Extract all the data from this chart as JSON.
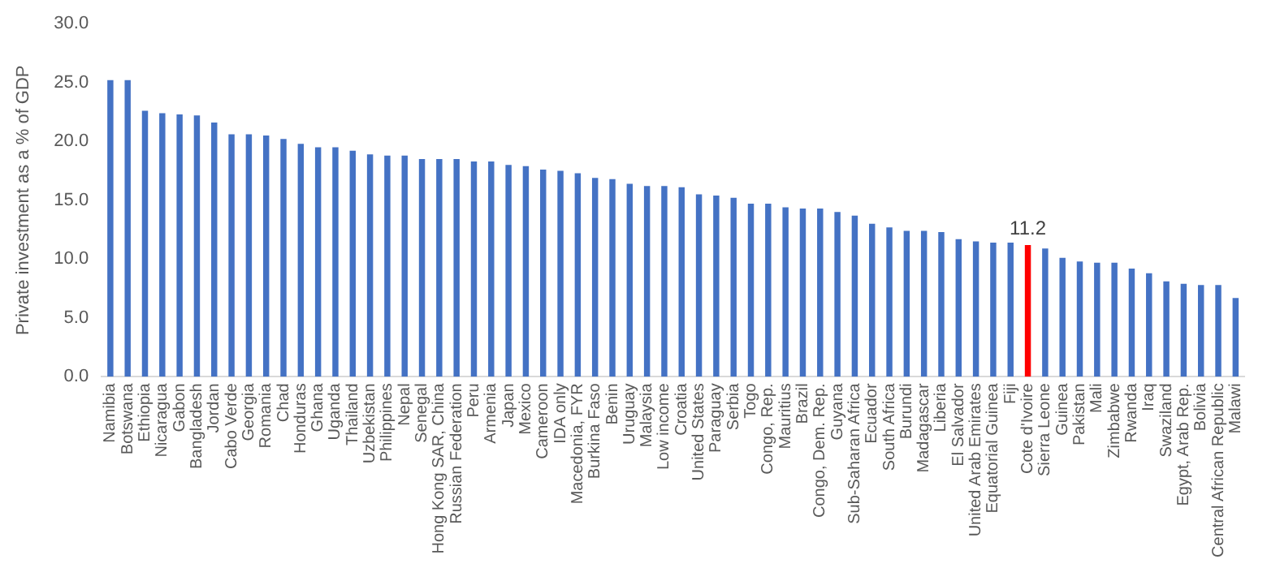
{
  "chart_data": {
    "type": "bar",
    "ylabel": "Private investment as a % of GDP",
    "categories": [
      "Namibia",
      "Botswana",
      "Ethiopia",
      "Nicaragua",
      "Gabon",
      "Bangladesh",
      "Jordan",
      "Cabo Verde",
      "Georgia",
      "Romania",
      "Chad",
      "Honduras",
      "Ghana",
      "Uganda",
      "Thailand",
      "Uzbekistan",
      "Philippines",
      "Nepal",
      "Senegal",
      "Hong Kong SAR, China",
      "Russian Federation",
      "Peru",
      "Armenia",
      "Japan",
      "Mexico",
      "Cameroon",
      "IDA only",
      "Macedonia, FYR",
      "Burkina Faso",
      "Benin",
      "Uruguay",
      "Malaysia",
      "Low income",
      "Croatia",
      "United States",
      "Paraguay",
      "Serbia",
      "Togo",
      "Congo, Rep.",
      "Mauritius",
      "Brazil",
      "Congo, Dem. Rep.",
      "Guyana",
      "Sub-Saharan Africa",
      "Ecuador",
      "South Africa",
      "Burundi",
      "Madagascar",
      "Liberia",
      "El Salvador",
      "United Arab Emirates",
      "Equatorial Guinea",
      "Fiji",
      "Cote d'Ivoire",
      "Sierra Leone",
      "Guinea",
      "Pakistan",
      "Mali",
      "Zimbabwe",
      "Rwanda",
      "Iraq",
      "Swaziland",
      "Egypt, Arab Rep.",
      "Bolivia",
      "Central African Republic",
      "Malawi"
    ],
    "values": [
      25.2,
      25.2,
      22.6,
      22.4,
      22.3,
      22.2,
      21.6,
      20.6,
      20.6,
      20.5,
      20.2,
      19.8,
      19.5,
      19.5,
      19.2,
      18.9,
      18.8,
      18.8,
      18.5,
      18.5,
      18.5,
      18.3,
      18.3,
      18.0,
      17.9,
      17.6,
      17.5,
      17.3,
      16.9,
      16.8,
      16.4,
      16.2,
      16.2,
      16.1,
      15.5,
      15.4,
      15.2,
      14.7,
      14.7,
      14.4,
      14.3,
      14.3,
      14.0,
      13.7,
      13.0,
      12.7,
      12.4,
      12.4,
      12.3,
      11.7,
      11.5,
      11.4,
      11.4,
      11.2,
      10.9,
      10.1,
      9.8,
      9.7,
      9.7,
      9.2,
      8.8,
      8.1,
      7.9,
      7.8,
      7.8,
      6.7
    ],
    "colors": [
      "#4472c4",
      "#4472c4",
      "#4472c4",
      "#4472c4",
      "#4472c4",
      "#4472c4",
      "#4472c4",
      "#4472c4",
      "#4472c4",
      "#4472c4",
      "#4472c4",
      "#4472c4",
      "#4472c4",
      "#4472c4",
      "#4472c4",
      "#4472c4",
      "#4472c4",
      "#4472c4",
      "#4472c4",
      "#4472c4",
      "#4472c4",
      "#4472c4",
      "#4472c4",
      "#4472c4",
      "#4472c4",
      "#4472c4",
      "#4472c4",
      "#4472c4",
      "#4472c4",
      "#4472c4",
      "#4472c4",
      "#4472c4",
      "#4472c4",
      "#4472c4",
      "#4472c4",
      "#4472c4",
      "#4472c4",
      "#4472c4",
      "#4472c4",
      "#4472c4",
      "#4472c4",
      "#4472c4",
      "#4472c4",
      "#4472c4",
      "#4472c4",
      "#4472c4",
      "#4472c4",
      "#4472c4",
      "#4472c4",
      "#4472c4",
      "#4472c4",
      "#4472c4",
      "#4472c4",
      "#ff0000",
      "#4472c4",
      "#4472c4",
      "#4472c4",
      "#4472c4",
      "#4472c4",
      "#4472c4",
      "#4472c4",
      "#4472c4",
      "#4472c4",
      "#4472c4",
      "#4472c4",
      "#4472c4"
    ],
    "value_labels": [
      null,
      null,
      null,
      null,
      null,
      null,
      null,
      null,
      null,
      null,
      null,
      null,
      null,
      null,
      null,
      null,
      null,
      null,
      null,
      null,
      null,
      null,
      null,
      null,
      null,
      null,
      null,
      null,
      null,
      null,
      null,
      null,
      null,
      null,
      null,
      null,
      null,
      null,
      null,
      null,
      null,
      null,
      null,
      null,
      null,
      null,
      null,
      null,
      null,
      null,
      null,
      null,
      null,
      "11.2",
      null,
      null,
      null,
      null,
      null,
      null,
      null,
      null,
      null,
      null,
      null,
      null
    ],
    "ylim": [
      0,
      30
    ],
    "yticks": [
      {
        "value": 0,
        "label": "0.0"
      },
      {
        "value": 5,
        "label": "5.0"
      },
      {
        "value": 10,
        "label": "10.0"
      },
      {
        "value": 15,
        "label": "15.0"
      },
      {
        "value": 20,
        "label": "20.0"
      },
      {
        "value": 25,
        "label": "25.0"
      },
      {
        "value": 30,
        "label": "30.0"
      }
    ],
    "grid": false,
    "legend": false
  }
}
